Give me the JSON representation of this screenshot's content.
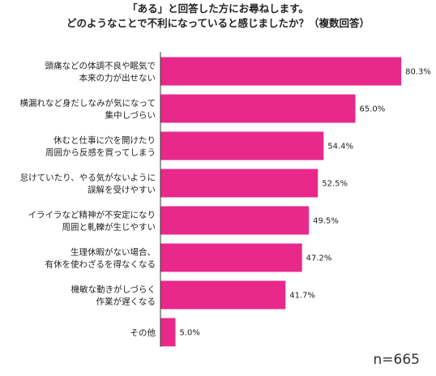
{
  "title_lines": [
    "「ある」と回答した方にお尋ねします。",
    "どのようなことで不利になっていると感じましたか？（複数回答）"
  ],
  "sample_size": "n=665",
  "bar_color": "#e8288a",
  "chart_data": {
    "type": "bar",
    "orientation": "horizontal",
    "title": "「ある」と回答した方にお尋ねします。どのようなことで不利になっていると感じましたか？（複数回答）",
    "categories": [
      [
        "頭痛などの体調不良や眠気で",
        "本来の力が出せない"
      ],
      [
        "横漏れなど身だしなみが気になって",
        "集中しづらい"
      ],
      [
        "休むと仕事に穴を開けたり",
        "周囲から反感を買ってしまう"
      ],
      [
        "怠けていたり、やる気がないように",
        "誤解を受けやすい"
      ],
      [
        "イライラなど精神が不安定になり",
        "周囲と軋轢が生じやすい"
      ],
      [
        "生理休暇がない場合、",
        "有休を使わざるを得なくなる"
      ],
      [
        "機敏な動きがしづらく",
        "作業が遅くなる"
      ],
      [
        "その他"
      ]
    ],
    "values": [
      80.3,
      65.0,
      54.4,
      52.5,
      49.5,
      47.2,
      41.7,
      5.0
    ],
    "value_labels": [
      "80.3%",
      "65.0%",
      "54.4%",
      "52.5%",
      "49.5%",
      "47.2%",
      "41.7%",
      "5.0%"
    ],
    "xlim": [
      0,
      100
    ],
    "grid": false,
    "legend": "none"
  }
}
